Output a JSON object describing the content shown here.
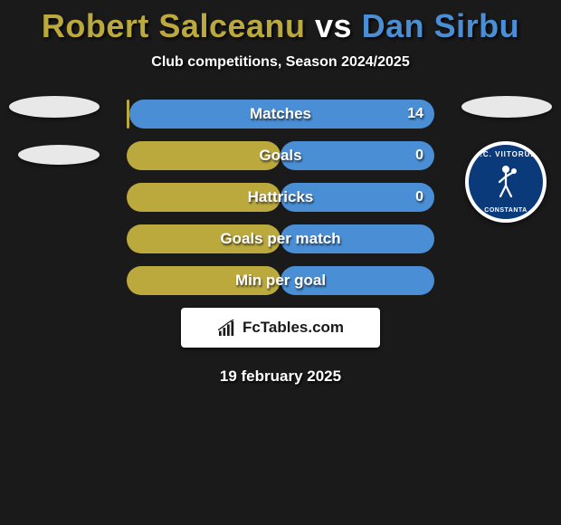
{
  "title": {
    "player1": "Robert Salceanu",
    "vs": "vs",
    "player2": "Dan Sirbu",
    "color_p1": "#bca93e",
    "color_vs": "#ffffff",
    "color_p2": "#4a8fd6"
  },
  "subtitle": "Club competitions, Season 2024/2025",
  "bars": {
    "total_width": 340,
    "height": 32,
    "gap": 14,
    "color_left": "#bca93e",
    "color_right": "#4a8fd6",
    "label_color": "#ffffff",
    "label_fontsize": 17,
    "rows": [
      {
        "label": "Matches",
        "left_w": 3,
        "right_w": 337,
        "value_right": "14"
      },
      {
        "label": "Goals",
        "left_w": 170,
        "right_w": 170,
        "value_right": "0"
      },
      {
        "label": "Hattricks",
        "left_w": 170,
        "right_w": 170,
        "value_right": "0"
      },
      {
        "label": "Goals per match",
        "left_w": 170,
        "right_w": 170,
        "value_right": ""
      },
      {
        "label": "Min per goal",
        "left_w": 170,
        "right_w": 170,
        "value_right": ""
      }
    ]
  },
  "club_badge": {
    "top_text": "F.C. VIITORUL",
    "bottom_text": "CONSTANTA",
    "bg": "#0b3a7a",
    "border": "#ffffff"
  },
  "logo": {
    "text": "FcTables.com",
    "icon_bars": [
      6,
      10,
      14,
      18
    ],
    "icon_color": "#1a1a1a",
    "bg": "#ffffff"
  },
  "date": "19 february 2025",
  "background": "#1a1a1a"
}
